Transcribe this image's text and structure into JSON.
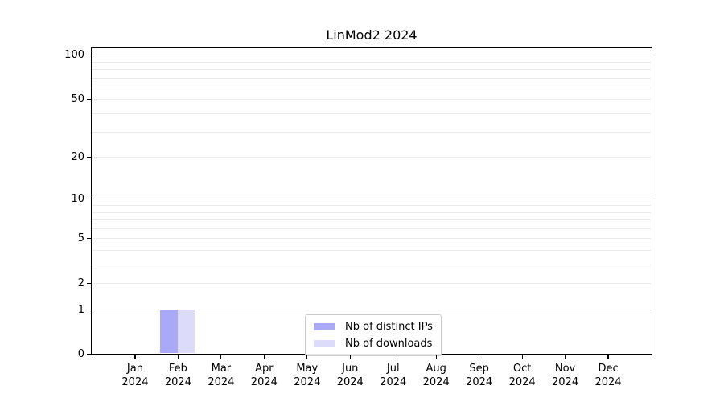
{
  "chart_data": {
    "type": "bar",
    "title": "LinMod2 2024",
    "year": "2024",
    "categories": [
      "Jan",
      "Feb",
      "Mar",
      "Apr",
      "May",
      "Jun",
      "Jul",
      "Aug",
      "Sep",
      "Oct",
      "Nov",
      "Dec"
    ],
    "series": [
      {
        "name": "Nb of distinct IPs",
        "color": "#a9a9f7",
        "values": [
          0,
          1,
          0,
          0,
          0,
          0,
          0,
          0,
          0,
          0,
          0,
          0
        ]
      },
      {
        "name": "Nb of downloads",
        "color": "#dcdcfa",
        "values": [
          0,
          1,
          0,
          0,
          0,
          0,
          0,
          0,
          0,
          0,
          0,
          0
        ]
      }
    ],
    "y_axis": {
      "scale": "log1p",
      "tick_labels": [
        0,
        1,
        2,
        5,
        10,
        20,
        50,
        100
      ],
      "major_gridlines": [
        1,
        10,
        100
      ],
      "minor_gridlines": [
        2,
        3,
        4,
        5,
        6,
        7,
        8,
        9,
        20,
        30,
        40,
        50,
        60,
        70,
        80,
        90
      ],
      "range": [
        0,
        115
      ]
    },
    "legend": {
      "position": "lower-center-inside"
    },
    "grid": "horizontal",
    "colors": {
      "grid_major": "#c8c8c8",
      "grid_minor": "#ececec",
      "spine": "#000000",
      "background": "#ffffff"
    }
  }
}
